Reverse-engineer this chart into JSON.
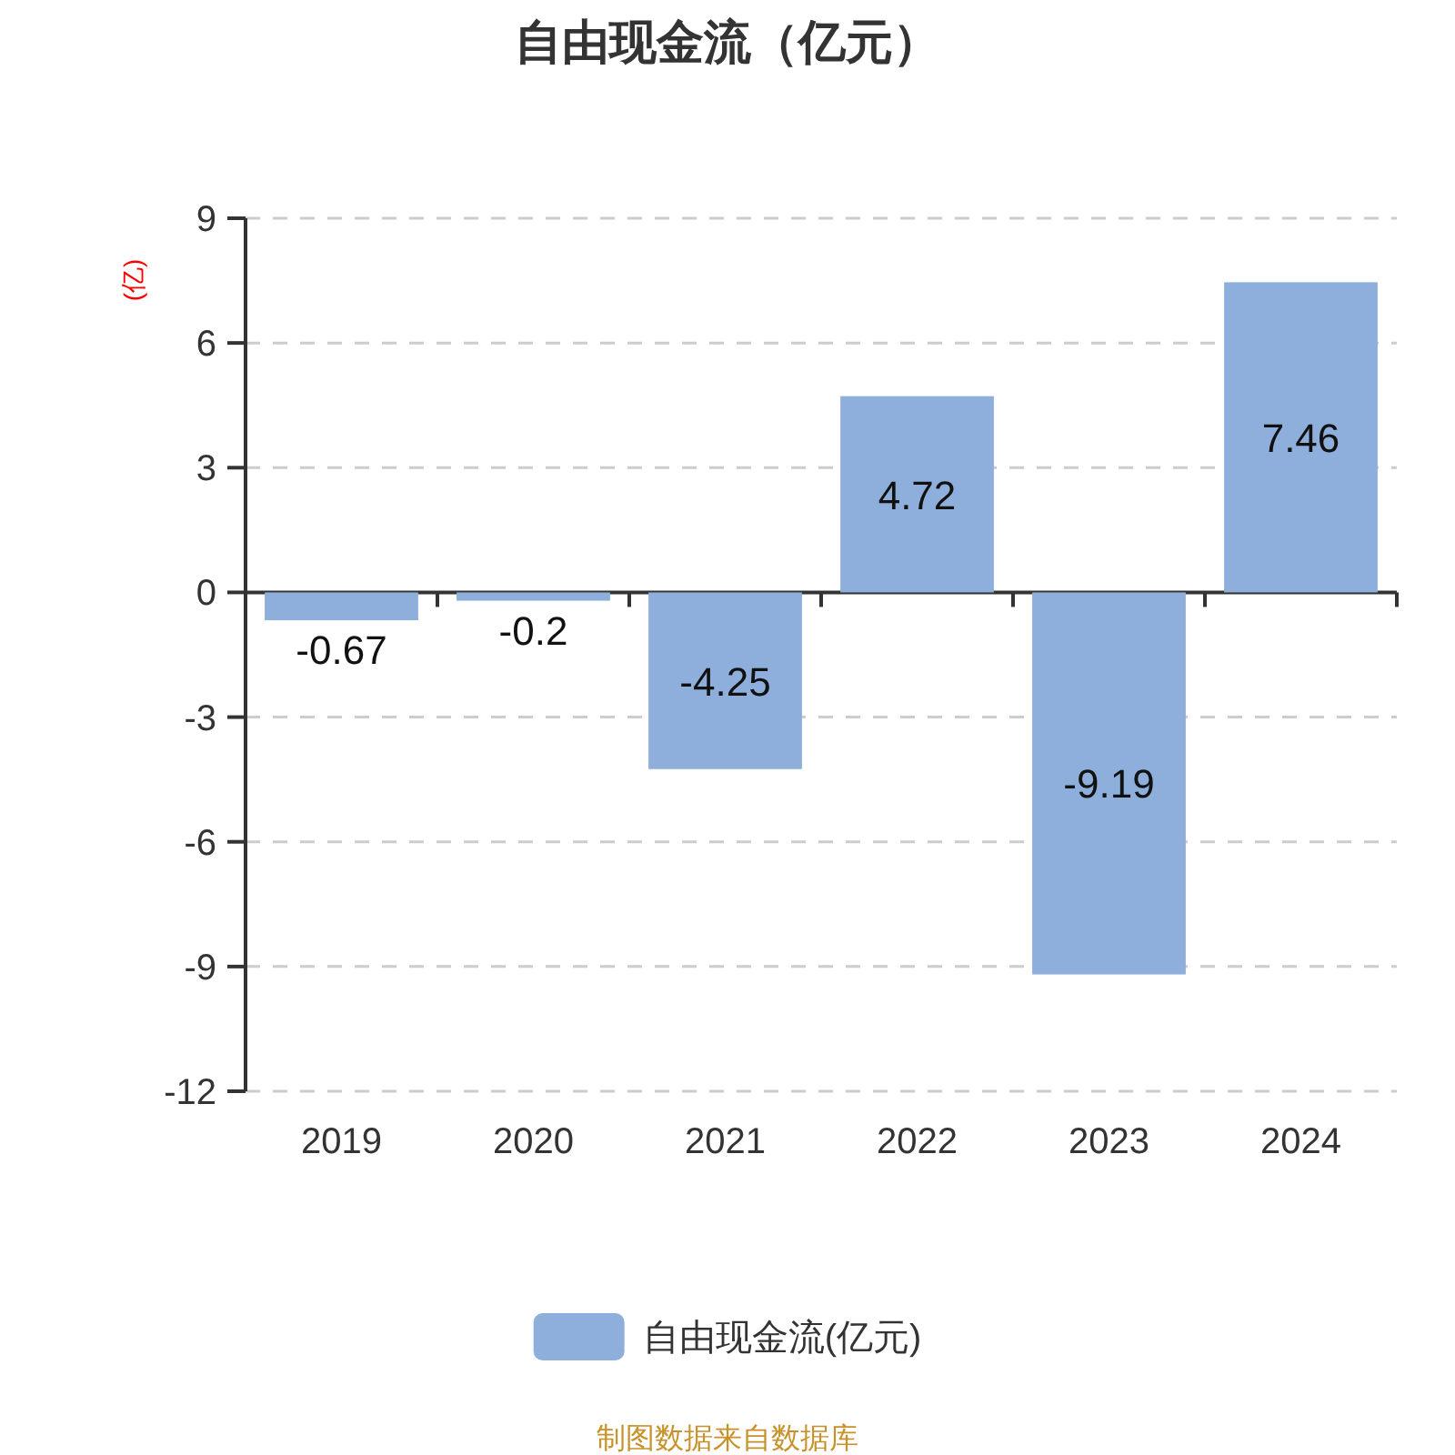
{
  "chart_data": {
    "type": "bar",
    "title": "自由现金流（亿元）",
    "ylabel": "(亿)",
    "categories": [
      "2019",
      "2020",
      "2021",
      "2022",
      "2023",
      "2024"
    ],
    "series": [
      {
        "name": "自由现金流(亿元)",
        "color": "#8eaedb",
        "values": [
          -0.67,
          -0.2,
          -4.25,
          4.72,
          -9.19,
          7.46
        ]
      }
    ],
    "ylim": [
      -12,
      9
    ],
    "yticks": [
      -12,
      -9,
      -6,
      -3,
      0,
      3,
      6,
      9
    ],
    "grid": "y",
    "legend": "bottom",
    "data_labels": true,
    "annotations": [
      "制图数据来自数据库"
    ]
  }
}
